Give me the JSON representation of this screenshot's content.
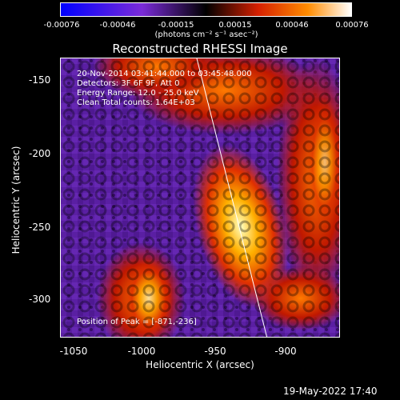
{
  "colorbar": {
    "ticks": [
      "-0.00076",
      "-0.00046",
      "-0.00015",
      "0.00015",
      "0.00046",
      "0.00076"
    ],
    "unit": "(photons cm⁻² s⁻¹ asec⁻²)",
    "colors": [
      "#0000ff",
      "#7a2bd8",
      "#000000",
      "#d62000",
      "#ff8c00",
      "#ffffff"
    ]
  },
  "title": "Reconstructed RHESSI Image",
  "info": {
    "line1": "20-Nov-2014 03:41:44.000 to 03:45:48.000",
    "line2": "Detectors: 3F 6F 9F, Att 0",
    "line3": "Energy Range: 12.0 - 25.0 keV",
    "line4": "Clean      Total counts: 1.64E+03",
    "peak": "Position of Peak = [-871,-236]"
  },
  "axes": {
    "xlabel": "Heliocentric X (arcsec)",
    "ylabel": "Heliocentric Y (arcsec)",
    "xticks": [
      "-1050",
      "-1000",
      "-950",
      "-900"
    ],
    "yticks": [
      "-150",
      "-200",
      "-250",
      "-300"
    ],
    "xlim": [
      -1050,
      -866
    ],
    "ylim": [
      -327,
      -138
    ]
  },
  "timestamp": "19-May-2022 17:40"
}
